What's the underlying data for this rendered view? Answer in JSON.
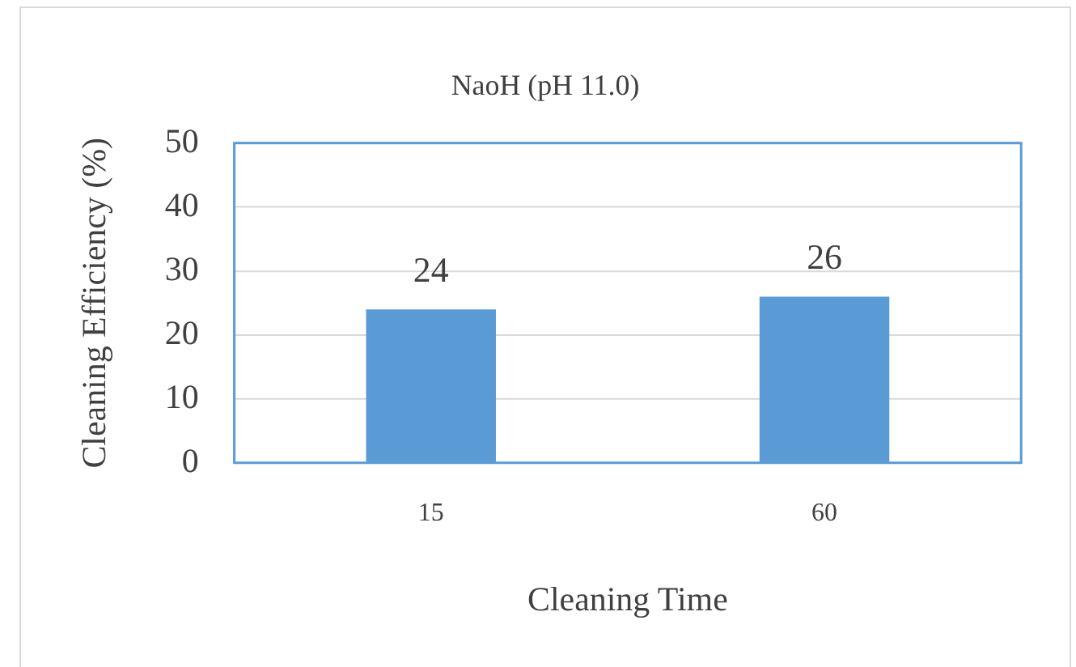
{
  "chart_data": {
    "type": "bar",
    "title": "NaoH (pH 11.0)",
    "xlabel": "Cleaning Time",
    "ylabel": "Cleaning Efficiency (%)",
    "categories": [
      "15",
      "60"
    ],
    "values": [
      24,
      26
    ],
    "color": "#5b9bd5",
    "ylim": [
      0,
      50
    ],
    "yticks": [
      0,
      10,
      20,
      30,
      40,
      50
    ],
    "grid": "y",
    "data_labels": true
  }
}
